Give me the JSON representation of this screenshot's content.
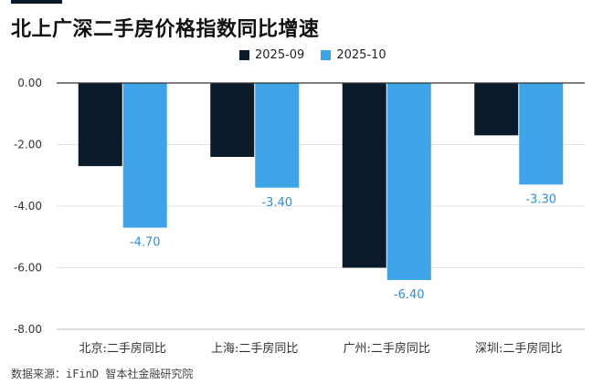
{
  "title": "北上广深二手房价格指数同比增速",
  "source": "数据来源：iFinD 智本社金融研究院",
  "colors": {
    "series1": "#0b1b2b",
    "series2": "#3fa3e8",
    "grid": "#e3e3e3",
    "axis": "#333333",
    "label2": "#2f8fd8"
  },
  "chart_data": {
    "type": "bar",
    "title": "北上广深二手房价格指数同比增速",
    "categories": [
      "北京:二手房同比",
      "上海:二手房同比",
      "广州:二手房同比",
      "深圳:二手房同比"
    ],
    "series": [
      {
        "name": "2025-09",
        "values": [
          -2.7,
          -2.4,
          -6.0,
          -1.7
        ],
        "labels": [
          "",
          "",
          "",
          ""
        ]
      },
      {
        "name": "2025-10",
        "values": [
          -4.7,
          -3.4,
          -6.4,
          -3.3
        ],
        "labels": [
          "-4.70",
          "-3.40",
          "-6.40",
          "-3.30"
        ]
      }
    ],
    "yticks": [
      "0.00",
      "-2.00",
      "-4.00",
      "-6.00",
      "-8.00"
    ],
    "ytick_values": [
      0,
      -2,
      -4,
      -6,
      -8
    ],
    "ylim": [
      -8,
      0
    ],
    "legend_position": "top-center",
    "xlabel": "",
    "ylabel": ""
  }
}
